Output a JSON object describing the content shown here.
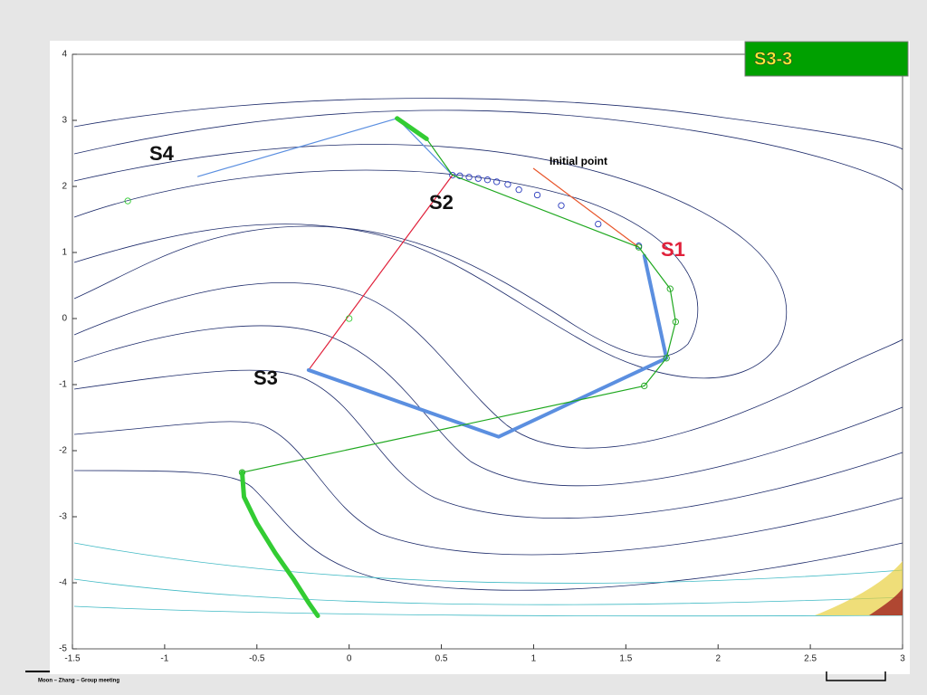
{
  "chart_data": {
    "type": "line",
    "title": "S3-3",
    "footer": "Moon – Zhang – Group meeting",
    "xlim": [
      -1.5,
      3
    ],
    "ylim": [
      -5,
      4
    ],
    "xticks": [
      -1.5,
      -1,
      -0.5,
      0,
      0.5,
      1,
      1.5,
      2,
      2.5,
      3
    ],
    "yticks": [
      -5,
      -4,
      -3,
      -2,
      -1,
      0,
      1,
      2,
      3,
      4
    ],
    "annotations": [
      "S1",
      "S2",
      "S3",
      "S4",
      "Initial point"
    ],
    "series": [
      {
        "color": "#5b8fe0",
        "width": 1.2,
        "marker": "none",
        "x": [
          -0.82,
          0.26,
          0.56
        ],
        "values": [
          2.15,
          3.03,
          2.17
        ]
      },
      {
        "color": "#2a3bbd",
        "width": 0.8,
        "marker": "o",
        "x": [
          0.56,
          0.6,
          0.65,
          0.7,
          0.75,
          0.8,
          0.86,
          0.92,
          1.02,
          1.15,
          1.35,
          1.57
        ],
        "values": [
          2.17,
          2.16,
          2.14,
          2.12,
          2.1,
          2.07,
          2.03,
          1.95,
          1.87,
          1.71,
          1.43,
          1.1
        ]
      },
      {
        "color": "#e0203a",
        "width": 1.2,
        "marker": "none",
        "x": [
          0.56,
          -0.22
        ],
        "values": [
          2.17,
          -0.78
        ]
      },
      {
        "color": "#e8552a",
        "width": 1.2,
        "marker": "none",
        "x": [
          1.0,
          1.57
        ],
        "values": [
          2.27,
          1.08
        ]
      },
      {
        "color": "#5b8fe0",
        "width": 4,
        "marker": "none",
        "x": [
          1.6,
          1.72,
          0.81,
          -0.22
        ],
        "values": [
          0.95,
          -0.6,
          -1.79,
          -0.78
        ]
      },
      {
        "color": "#1fa81f",
        "width": 1.2,
        "marker": "o",
        "x": [
          1.57,
          1.74,
          1.77,
          1.72,
          1.6,
          -0.58
        ],
        "values": [
          1.08,
          0.45,
          -0.05,
          -0.6,
          -1.02,
          -2.33
        ]
      },
      {
        "color": "#1fa81f",
        "width": 1.2,
        "marker": "none",
        "x": [
          1.57,
          0.56,
          0.42,
          0.25
        ],
        "values": [
          1.08,
          2.17,
          2.72,
          3.03
        ]
      },
      {
        "color": "#33cc33",
        "width": 5,
        "marker": "none",
        "x": [
          0.26,
          0.42
        ],
        "values": [
          3.03,
          2.72
        ]
      },
      {
        "color": "#33cc33",
        "width": 5,
        "marker": "none",
        "x": [
          -0.58,
          -0.57,
          -0.5,
          -0.4,
          -0.3,
          -0.22,
          -0.17
        ],
        "values": [
          -2.33,
          -2.7,
          -3.1,
          -3.55,
          -3.95,
          -4.3,
          -4.5
        ]
      },
      {
        "color": "#33cc33",
        "width": 0.8,
        "marker": "o",
        "x": [
          -1.2,
          0.0
        ],
        "values": [
          1.78,
          0.0
        ]
      }
    ]
  }
}
